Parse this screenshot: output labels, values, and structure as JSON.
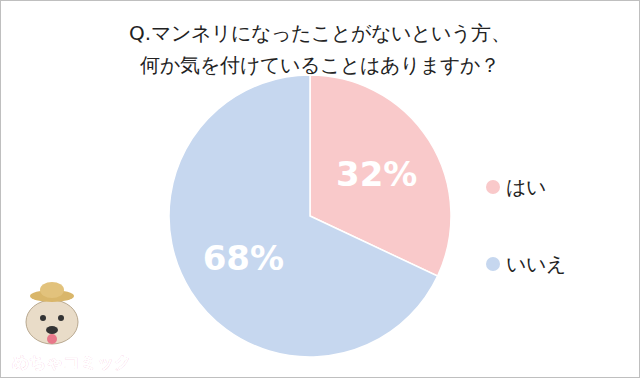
{
  "chart_data": {
    "type": "pie",
    "title": [
      "Q.マンネリになったことがないという方、",
      "何か気を付けていることはありますか？"
    ],
    "categories": [
      "はい",
      "いいえ"
    ],
    "values": [
      32,
      68
    ],
    "value_labels": [
      "32%",
      "68%"
    ],
    "colors": [
      "#f9c9ca",
      "#c6d7ef"
    ],
    "data_labels": true,
    "legend": "right",
    "annotations": [
      "めちゃコミック"
    ]
  }
}
